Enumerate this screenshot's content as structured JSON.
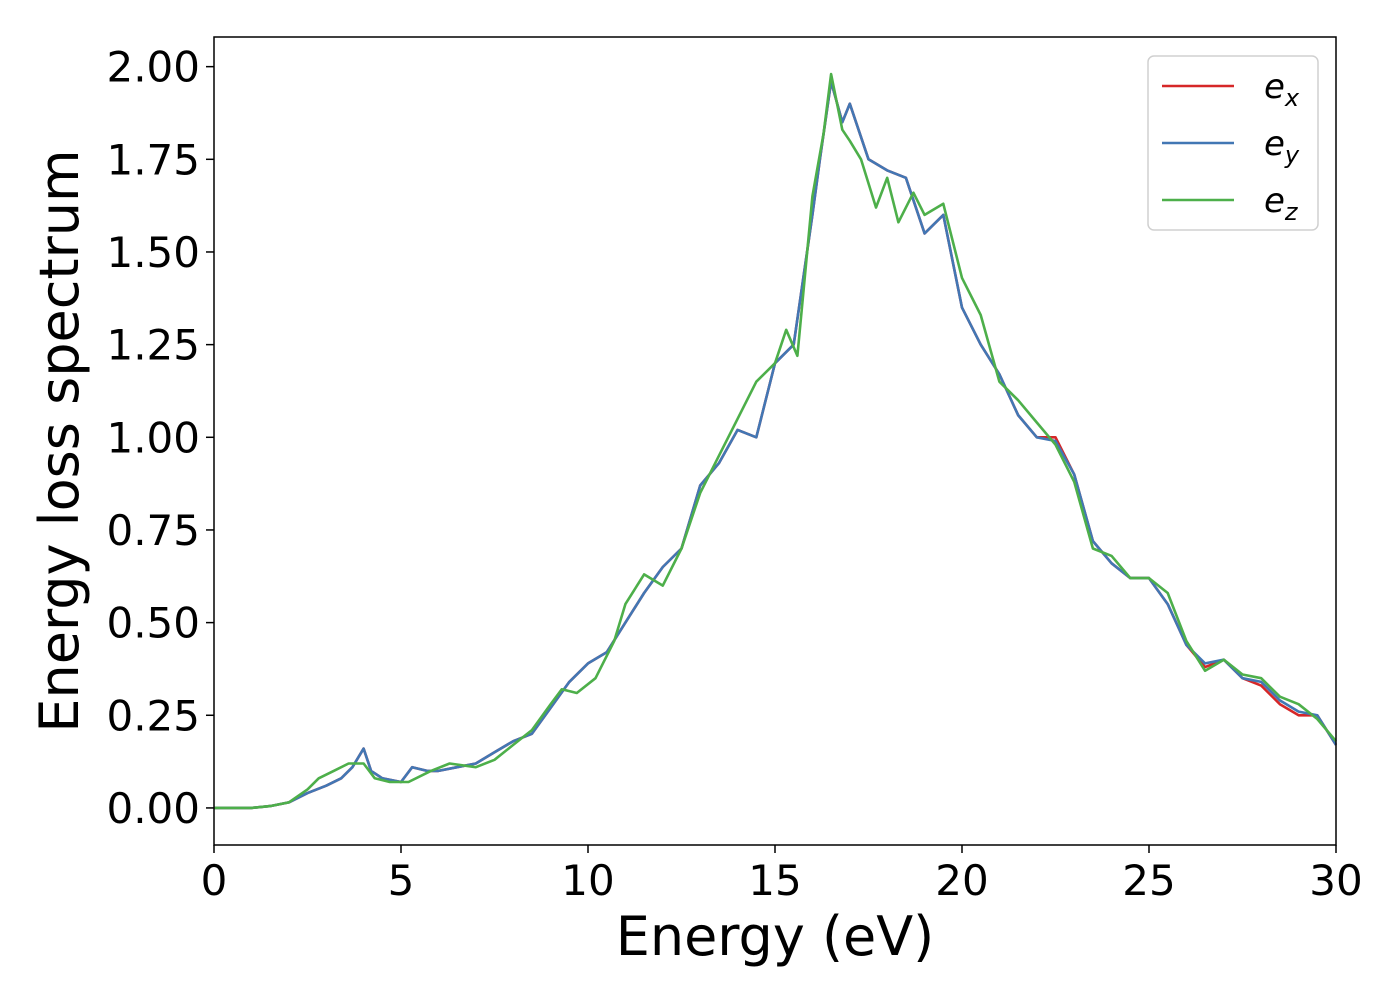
{
  "chart_data": {
    "type": "line",
    "xlabel": "Energy (eV)",
    "ylabel": "Energy loss spectrum",
    "xlim": [
      0,
      30
    ],
    "ylim": [
      -0.1,
      2.08
    ],
    "xticks": [
      0,
      5,
      10,
      15,
      20,
      25,
      30
    ],
    "yticks": [
      0.0,
      0.25,
      0.5,
      0.75,
      1.0,
      1.25,
      1.5,
      1.75,
      2.0
    ],
    "ytick_labels": [
      "0.00",
      "0.25",
      "0.50",
      "0.75",
      "1.00",
      "1.25",
      "1.50",
      "1.75",
      "2.00"
    ],
    "grid": false,
    "legend_position": "top-right",
    "series": [
      {
        "name": "e_x",
        "label_base": "e",
        "label_sub": "x",
        "color": "#d62728",
        "x": [
          0,
          1,
          1.5,
          2,
          2.5,
          3,
          3.4,
          3.7,
          4.0,
          4.2,
          4.5,
          5.0,
          5.3,
          5.7,
          6,
          6.5,
          7,
          7.5,
          8,
          8.5,
          9,
          9.5,
          10,
          10.5,
          11,
          11.5,
          12,
          12.5,
          13,
          13.5,
          14,
          14.5,
          15,
          15.5,
          16,
          16.2,
          16.5,
          16.8,
          17,
          17.5,
          18,
          18.5,
          19,
          19.5,
          20,
          20.5,
          21,
          21.5,
          22,
          22.5,
          23,
          23.5,
          24,
          24.5,
          25,
          25.5,
          26,
          26.5,
          27,
          27.5,
          28,
          28.5,
          29,
          29.5,
          30
        ],
        "y": [
          0,
          0,
          0.005,
          0.015,
          0.04,
          0.06,
          0.08,
          0.11,
          0.16,
          0.1,
          0.08,
          0.07,
          0.11,
          0.1,
          0.1,
          0.11,
          0.12,
          0.15,
          0.18,
          0.2,
          0.27,
          0.34,
          0.39,
          0.42,
          0.5,
          0.58,
          0.65,
          0.7,
          0.87,
          0.93,
          1.02,
          1.0,
          1.2,
          1.25,
          1.6,
          1.75,
          1.96,
          1.85,
          1.9,
          1.75,
          1.72,
          1.7,
          1.55,
          1.6,
          1.35,
          1.25,
          1.17,
          1.06,
          1.0,
          1.0,
          0.9,
          0.72,
          0.66,
          0.62,
          0.62,
          0.55,
          0.44,
          0.38,
          0.4,
          0.35,
          0.33,
          0.28,
          0.25,
          0.25,
          0.17
        ]
      },
      {
        "name": "e_y",
        "label_base": "e",
        "label_sub": "y",
        "color": "#4277b4",
        "x": [
          0,
          1,
          1.5,
          2,
          2.5,
          3,
          3.4,
          3.7,
          4.0,
          4.2,
          4.5,
          5.0,
          5.3,
          5.7,
          6,
          6.5,
          7,
          7.5,
          8,
          8.5,
          9,
          9.5,
          10,
          10.5,
          11,
          11.5,
          12,
          12.5,
          13,
          13.5,
          14,
          14.5,
          15,
          15.5,
          16,
          16.2,
          16.5,
          16.8,
          17,
          17.5,
          18,
          18.5,
          19,
          19.5,
          20,
          20.5,
          21,
          21.5,
          22,
          22.5,
          23,
          23.5,
          24,
          24.5,
          25,
          25.5,
          26,
          26.5,
          27,
          27.5,
          28,
          28.5,
          29,
          29.5,
          30
        ],
        "y": [
          0,
          0,
          0.005,
          0.015,
          0.04,
          0.06,
          0.08,
          0.11,
          0.16,
          0.1,
          0.08,
          0.07,
          0.11,
          0.1,
          0.1,
          0.11,
          0.12,
          0.15,
          0.18,
          0.2,
          0.27,
          0.34,
          0.39,
          0.42,
          0.5,
          0.58,
          0.65,
          0.7,
          0.87,
          0.93,
          1.02,
          1.0,
          1.2,
          1.25,
          1.6,
          1.75,
          1.96,
          1.85,
          1.9,
          1.75,
          1.72,
          1.7,
          1.55,
          1.6,
          1.35,
          1.25,
          1.17,
          1.06,
          1.0,
          0.99,
          0.9,
          0.72,
          0.66,
          0.62,
          0.62,
          0.55,
          0.44,
          0.39,
          0.4,
          0.35,
          0.34,
          0.29,
          0.26,
          0.25,
          0.17
        ]
      },
      {
        "name": "e_z",
        "label_base": "e",
        "label_sub": "z",
        "color": "#4daf4a",
        "x": [
          0,
          1,
          1.5,
          2,
          2.5,
          2.8,
          3.2,
          3.6,
          4.0,
          4.3,
          4.7,
          5.2,
          5.8,
          6.3,
          7,
          7.5,
          8,
          8.5,
          9,
          9.3,
          9.7,
          10.2,
          10.7,
          11,
          11.5,
          12,
          12.5,
          13,
          13.5,
          14,
          14.5,
          15,
          15.3,
          15.6,
          16,
          16.3,
          16.5,
          16.8,
          17,
          17.3,
          17.7,
          18,
          18.3,
          18.7,
          19,
          19.5,
          20,
          20.5,
          21,
          21.5,
          22,
          22.5,
          23,
          23.5,
          24,
          24.5,
          25,
          25.5,
          26,
          26.5,
          27,
          27.5,
          28,
          28.5,
          29,
          29.5,
          30
        ],
        "y": [
          0,
          0,
          0.005,
          0.015,
          0.05,
          0.08,
          0.1,
          0.12,
          0.12,
          0.08,
          0.07,
          0.07,
          0.1,
          0.12,
          0.11,
          0.13,
          0.17,
          0.21,
          0.28,
          0.32,
          0.31,
          0.35,
          0.45,
          0.55,
          0.63,
          0.6,
          0.7,
          0.85,
          0.95,
          1.05,
          1.15,
          1.2,
          1.29,
          1.22,
          1.65,
          1.82,
          1.98,
          1.83,
          1.8,
          1.75,
          1.62,
          1.7,
          1.58,
          1.66,
          1.6,
          1.63,
          1.43,
          1.33,
          1.15,
          1.1,
          1.04,
          0.98,
          0.88,
          0.7,
          0.68,
          0.62,
          0.62,
          0.58,
          0.45,
          0.37,
          0.4,
          0.36,
          0.35,
          0.3,
          0.28,
          0.24,
          0.18
        ]
      }
    ]
  }
}
